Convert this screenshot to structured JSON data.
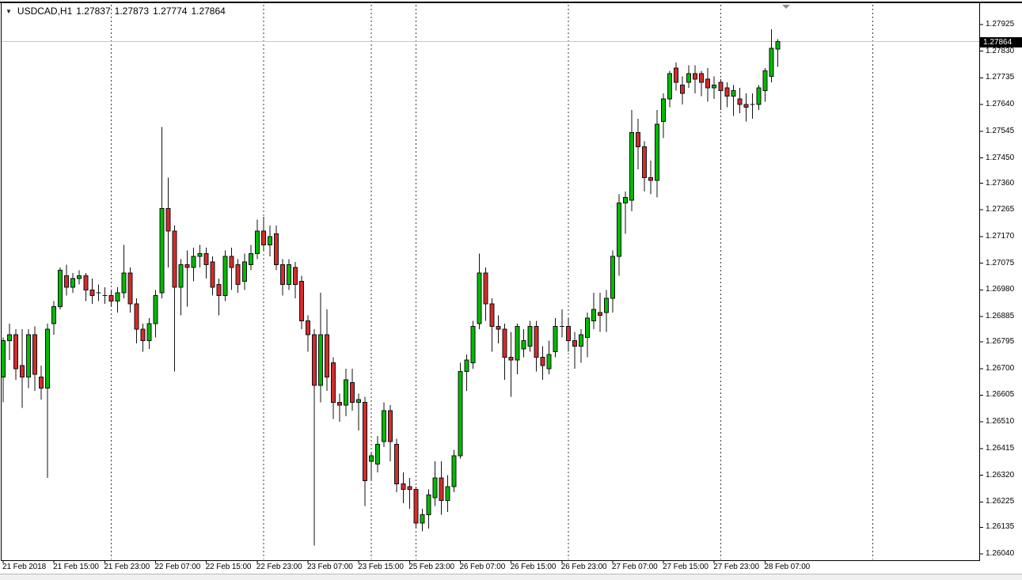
{
  "header": {
    "symbol": "USDCAD,H1",
    "open": "1.27837",
    "high": "1.27873",
    "low": "1.27774",
    "close": "1.27864"
  },
  "price_axis": {
    "current_price": "1.27864",
    "ticks": [
      "1.27925",
      "1.27830",
      "1.27735",
      "1.27640",
      "1.27545",
      "1.27450",
      "1.27360",
      "1.27265",
      "1.27170",
      "1.27075",
      "1.26980",
      "1.26885",
      "1.26795",
      "1.26700",
      "1.26605",
      "1.26510",
      "1.26415",
      "1.26320",
      "1.26225",
      "1.26135",
      "1.26040"
    ]
  },
  "time_axis": {
    "labels": [
      {
        "text": "21 Feb 2018",
        "index": 0
      },
      {
        "text": "21 Feb 15:00",
        "index": 8
      },
      {
        "text": "21 Feb 23:00",
        "index": 16
      },
      {
        "text": "22 Feb 07:00",
        "index": 24
      },
      {
        "text": "22 Feb 15:00",
        "index": 32
      },
      {
        "text": "22 Feb 23:00",
        "index": 40
      },
      {
        "text": "23 Feb 07:00",
        "index": 48
      },
      {
        "text": "23 Feb 15:00",
        "index": 56
      },
      {
        "text": "25 Feb 23:00",
        "index": 64
      },
      {
        "text": "26 Feb 07:00",
        "index": 72
      },
      {
        "text": "26 Feb 15:00",
        "index": 80
      },
      {
        "text": "26 Feb 23:00",
        "index": 88
      },
      {
        "text": "27 Feb 07:00",
        "index": 96
      },
      {
        "text": "27 Feb 15:00",
        "index": 104
      },
      {
        "text": "27 Feb 23:00",
        "index": 112
      },
      {
        "text": "28 Feb 07:00",
        "index": 120
      }
    ]
  },
  "colors": {
    "bull": "#00BB00",
    "bear": "#D32C2C",
    "wick": "#111111",
    "separator": "#3a3a3a",
    "bid_line": "#c6c6c6",
    "badge_bg": "#000000",
    "badge_fg": "#ffffff",
    "border": "#000000"
  },
  "chart_data": {
    "type": "candlestick",
    "title": "USDCAD,H1",
    "symbol": "USDCAD",
    "timeframe": "H1",
    "price_range": {
      "axis_top": 1.27925,
      "axis_bottom": 1.2604
    },
    "current_bid": 1.27864,
    "day_separator_indices": [
      17,
      41,
      58,
      65,
      89,
      113,
      137
    ],
    "columns": [
      "time",
      "open",
      "high",
      "low",
      "close"
    ],
    "candles": [
      [
        "21 Feb 07:00",
        1.2667,
        1.2681,
        1.2658,
        1.268
      ],
      [
        "21 Feb 08:00",
        1.268,
        1.2686,
        1.2673,
        1.2682
      ],
      [
        "21 Feb 09:00",
        1.2682,
        1.2684,
        1.2666,
        1.267
      ],
      [
        "21 Feb 10:00",
        1.2671,
        1.2684,
        1.2656,
        1.2667
      ],
      [
        "21 Feb 11:00",
        1.2667,
        1.2684,
        1.2663,
        1.2682
      ],
      [
        "21 Feb 12:00",
        1.2682,
        1.2685,
        1.2662,
        1.2668
      ],
      [
        "21 Feb 13:00",
        1.2667,
        1.2671,
        1.2659,
        1.2663
      ],
      [
        "21 Feb 14:00",
        1.2663,
        1.2686,
        1.2631,
        1.2684
      ],
      [
        "21 Feb 15:00",
        1.2686,
        1.2694,
        1.2682,
        1.2692
      ],
      [
        "21 Feb 16:00",
        1.2692,
        1.2706,
        1.2691,
        1.2705
      ],
      [
        "21 Feb 17:00",
        1.2703,
        1.2707,
        1.2696,
        1.2699
      ],
      [
        "21 Feb 18:00",
        1.2699,
        1.2704,
        1.2697,
        1.2702
      ],
      [
        "21 Feb 19:00",
        1.2702,
        1.2705,
        1.27,
        1.2703
      ],
      [
        "21 Feb 20:00",
        1.2703,
        1.2704,
        1.2694,
        1.2698
      ],
      [
        "21 Feb 21:00",
        1.2698,
        1.2702,
        1.2693,
        1.2696
      ],
      [
        "21 Feb 22:00",
        1.2697,
        1.27,
        1.2694,
        1.2697
      ],
      [
        "21 Feb 23:00",
        1.2696,
        1.2699,
        1.2693,
        1.2696
      ],
      [
        "22 Feb 00:00",
        1.2696,
        1.2698,
        1.2692,
        1.2694
      ],
      [
        "22 Feb 01:00",
        1.2694,
        1.2699,
        1.269,
        1.2697
      ],
      [
        "22 Feb 02:00",
        1.2697,
        1.2714,
        1.2695,
        1.2704
      ],
      [
        "22 Feb 03:00",
        1.2704,
        1.2706,
        1.269,
        1.2693
      ],
      [
        "22 Feb 04:00",
        1.2693,
        1.2695,
        1.2679,
        1.2684
      ],
      [
        "22 Feb 05:00",
        1.2684,
        1.2686,
        1.2676,
        1.268
      ],
      [
        "22 Feb 06:00",
        1.268,
        1.2688,
        1.2677,
        1.2686
      ],
      [
        "22 Feb 07:00",
        1.2686,
        1.2698,
        1.2681,
        1.2696
      ],
      [
        "22 Feb 08:00",
        1.2697,
        1.2756,
        1.2695,
        1.2727
      ],
      [
        "22 Feb 09:00",
        1.2727,
        1.2738,
        1.2706,
        1.2719
      ],
      [
        "22 Feb 10:00",
        1.2719,
        1.2721,
        1.2669,
        1.2699
      ],
      [
        "22 Feb 11:00",
        1.2699,
        1.2709,
        1.2689,
        1.2707
      ],
      [
        "22 Feb 12:00",
        1.2707,
        1.2712,
        1.2692,
        1.2706
      ],
      [
        "22 Feb 13:00",
        1.2706,
        1.2713,
        1.2701,
        1.271
      ],
      [
        "22 Feb 14:00",
        1.271,
        1.2714,
        1.2706,
        1.2711
      ],
      [
        "22 Feb 15:00",
        1.2711,
        1.2713,
        1.2702,
        1.2707
      ],
      [
        "22 Feb 16:00",
        1.2708,
        1.271,
        1.2696,
        1.2699
      ],
      [
        "22 Feb 17:00",
        1.27,
        1.2702,
        1.2689,
        1.2696
      ],
      [
        "22 Feb 18:00",
        1.2696,
        1.2712,
        1.2694,
        1.271
      ],
      [
        "22 Feb 19:00",
        1.271,
        1.2713,
        1.2698,
        1.2706
      ],
      [
        "22 Feb 20:00",
        1.2707,
        1.2709,
        1.2697,
        1.27
      ],
      [
        "22 Feb 21:00",
        1.2701,
        1.2711,
        1.2698,
        1.2708
      ],
      [
        "22 Feb 22:00",
        1.2707,
        1.2714,
        1.2705,
        1.2711
      ],
      [
        "22 Feb 23:00",
        1.2711,
        1.2723,
        1.2709,
        1.2719
      ],
      [
        "23 Feb 00:00",
        1.2719,
        1.2724,
        1.2712,
        1.2714
      ],
      [
        "23 Feb 01:00",
        1.2714,
        1.2721,
        1.271,
        1.2717
      ],
      [
        "23 Feb 02:00",
        1.2718,
        1.2721,
        1.2705,
        1.2707
      ],
      [
        "23 Feb 03:00",
        1.2707,
        1.2709,
        1.2696,
        1.27
      ],
      [
        "23 Feb 04:00",
        1.27,
        1.2709,
        1.2698,
        1.2707
      ],
      [
        "23 Feb 05:00",
        1.2706,
        1.2708,
        1.2695,
        1.27
      ],
      [
        "23 Feb 06:00",
        1.2701,
        1.2703,
        1.2684,
        1.2687
      ],
      [
        "23 Feb 07:00",
        1.2687,
        1.2689,
        1.2676,
        1.2682
      ],
      [
        "23 Feb 08:00",
        1.2682,
        1.2684,
        1.2607,
        1.2664
      ],
      [
        "23 Feb 09:00",
        1.2664,
        1.2697,
        1.2658,
        1.2682
      ],
      [
        "23 Feb 10:00",
        1.2682,
        1.2691,
        1.2662,
        1.2667
      ],
      [
        "23 Feb 11:00",
        1.2672,
        1.2674,
        1.2652,
        1.2658
      ],
      [
        "23 Feb 12:00",
        1.2658,
        1.2661,
        1.2651,
        1.2657
      ],
      [
        "23 Feb 13:00",
        1.2657,
        1.267,
        1.2653,
        1.2666
      ],
      [
        "23 Feb 14:00",
        1.2665,
        1.267,
        1.2655,
        1.2658
      ],
      [
        "23 Feb 15:00",
        1.2658,
        1.2661,
        1.2648,
        1.2659
      ],
      [
        "23 Feb 16:00",
        1.2658,
        1.266,
        1.2621,
        1.263
      ],
      [
        "25 Feb 17:00",
        1.2637,
        1.264,
        1.263,
        1.2639
      ],
      [
        "25 Feb 18:00",
        1.2636,
        1.2646,
        1.2633,
        1.2643
      ],
      [
        "25 Feb 19:00",
        1.2644,
        1.2658,
        1.2642,
        1.2655
      ],
      [
        "25 Feb 20:00",
        1.2655,
        1.2657,
        1.2637,
        1.2644
      ],
      [
        "25 Feb 21:00",
        1.2643,
        1.2645,
        1.2626,
        1.2629
      ],
      [
        "25 Feb 22:00",
        1.2629,
        1.2633,
        1.2622,
        1.2627
      ],
      [
        "25 Feb 23:00",
        1.2628,
        1.2631,
        1.262,
        1.2627
      ],
      [
        "26 Feb 00:00",
        1.2627,
        1.2628,
        1.2613,
        1.2615
      ],
      [
        "26 Feb 01:00",
        1.2615,
        1.262,
        1.2612,
        1.2618
      ],
      [
        "26 Feb 02:00",
        1.2618,
        1.2627,
        1.2613,
        1.2625
      ],
      [
        "26 Feb 03:00",
        1.2624,
        1.2637,
        1.2621,
        1.2631
      ],
      [
        "26 Feb 04:00",
        1.2631,
        1.2637,
        1.2618,
        1.2623
      ],
      [
        "26 Feb 05:00",
        1.2623,
        1.2632,
        1.2619,
        1.2628
      ],
      [
        "26 Feb 06:00",
        1.2628,
        1.2641,
        1.2626,
        1.2639
      ],
      [
        "26 Feb 07:00",
        1.2639,
        1.2672,
        1.2638,
        1.2669
      ],
      [
        "26 Feb 08:00",
        1.2669,
        1.2675,
        1.2662,
        1.2673
      ],
      [
        "26 Feb 09:00",
        1.2672,
        1.2687,
        1.267,
        1.2685
      ],
      [
        "26 Feb 10:00",
        1.2686,
        1.2711,
        1.2684,
        1.2704
      ],
      [
        "26 Feb 11:00",
        1.2704,
        1.2706,
        1.2687,
        1.2693
      ],
      [
        "26 Feb 12:00",
        1.2693,
        1.2695,
        1.2676,
        1.2685
      ],
      [
        "26 Feb 13:00",
        1.2685,
        1.2689,
        1.2679,
        1.2684
      ],
      [
        "26 Feb 14:00",
        1.2684,
        1.2686,
        1.2666,
        1.2674
      ],
      [
        "26 Feb 15:00",
        1.2674,
        1.2683,
        1.266,
        1.2673
      ],
      [
        "26 Feb 16:00",
        1.2673,
        1.2686,
        1.2668,
        1.2685
      ],
      [
        "26 Feb 17:00",
        1.2677,
        1.2684,
        1.2674,
        1.268
      ],
      [
        "26 Feb 18:00",
        1.2678,
        1.2687,
        1.2676,
        1.2685
      ],
      [
        "26 Feb 19:00",
        1.2685,
        1.2687,
        1.2669,
        1.2674
      ],
      [
        "26 Feb 20:00",
        1.2674,
        1.2678,
        1.2666,
        1.2671
      ],
      [
        "26 Feb 21:00",
        1.267,
        1.268,
        1.2668,
        1.2675
      ],
      [
        "26 Feb 22:00",
        1.2676,
        1.2688,
        1.2674,
        1.2685
      ],
      [
        "26 Feb 23:00",
        1.2685,
        1.2691,
        1.2681,
        1.2685
      ],
      [
        "27 Feb 00:00",
        1.2685,
        1.2688,
        1.2676,
        1.268
      ],
      [
        "27 Feb 01:00",
        1.268,
        1.2683,
        1.267,
        1.2678
      ],
      [
        "27 Feb 02:00",
        1.2678,
        1.2684,
        1.2672,
        1.2682
      ],
      [
        "27 Feb 03:00",
        1.2681,
        1.269,
        1.2674,
        1.2688
      ],
      [
        "27 Feb 04:00",
        1.2687,
        1.2697,
        1.2684,
        1.2691
      ],
      [
        "27 Feb 05:00",
        1.269,
        1.2697,
        1.2683,
        1.2689
      ],
      [
        "27 Feb 06:00",
        1.269,
        1.2698,
        1.2683,
        1.2695
      ],
      [
        "27 Feb 07:00",
        1.2695,
        1.2712,
        1.269,
        1.271
      ],
      [
        "27 Feb 08:00",
        1.271,
        1.2732,
        1.2703,
        1.2729
      ],
      [
        "27 Feb 09:00",
        1.2729,
        1.2733,
        1.2718,
        1.2731
      ],
      [
        "27 Feb 10:00",
        1.273,
        1.2762,
        1.2726,
        1.2754
      ],
      [
        "27 Feb 11:00",
        1.2754,
        1.2759,
        1.2741,
        1.2749
      ],
      [
        "27 Feb 12:00",
        1.2749,
        1.2751,
        1.2733,
        1.2738
      ],
      [
        "27 Feb 13:00",
        1.2738,
        1.2744,
        1.2732,
        1.2737
      ],
      [
        "27 Feb 14:00",
        1.2737,
        1.2762,
        1.2731,
        1.2757
      ],
      [
        "27 Feb 15:00",
        1.2758,
        1.2768,
        1.2752,
        1.2766
      ],
      [
        "27 Feb 16:00",
        1.2766,
        1.2776,
        1.2763,
        1.2775
      ],
      [
        "27 Feb 17:00",
        1.2777,
        1.2779,
        1.2769,
        1.2772
      ],
      [
        "27 Feb 18:00",
        1.2771,
        1.2774,
        1.2764,
        1.2768
      ],
      [
        "27 Feb 19:00",
        1.2772,
        1.2778,
        1.277,
        1.2775
      ],
      [
        "27 Feb 20:00",
        1.2775,
        1.2778,
        1.2768,
        1.2773
      ],
      [
        "27 Feb 21:00",
        1.2775,
        1.2776,
        1.2767,
        1.2772
      ],
      [
        "27 Feb 22:00",
        1.2773,
        1.2777,
        1.2765,
        1.277
      ],
      [
        "27 Feb 23:00",
        1.277,
        1.2774,
        1.2766,
        1.2771
      ],
      [
        "28 Feb 00:00",
        1.2772,
        1.2773,
        1.2762,
        1.2769
      ],
      [
        "28 Feb 01:00",
        1.277,
        1.2772,
        1.2763,
        1.2767
      ],
      [
        "28 Feb 02:00",
        1.2767,
        1.2771,
        1.276,
        1.2769
      ],
      [
        "28 Feb 03:00",
        1.2766,
        1.277,
        1.2761,
        1.2764
      ],
      [
        "28 Feb 04:00",
        1.2764,
        1.2768,
        1.2758,
        1.2763
      ],
      [
        "28 Feb 05:00",
        1.2764,
        1.2768,
        1.2759,
        1.2764
      ],
      [
        "28 Feb 06:00",
        1.2764,
        1.2771,
        1.2762,
        1.277
      ],
      [
        "28 Feb 07:00",
        1.2769,
        1.2777,
        1.2765,
        1.2776
      ],
      [
        "28 Feb 08:00",
        1.2774,
        1.27908,
        1.2772,
        1.2784
      ],
      [
        "28 Feb 09:00",
        1.27837,
        1.27873,
        1.27774,
        1.27864
      ]
    ]
  }
}
